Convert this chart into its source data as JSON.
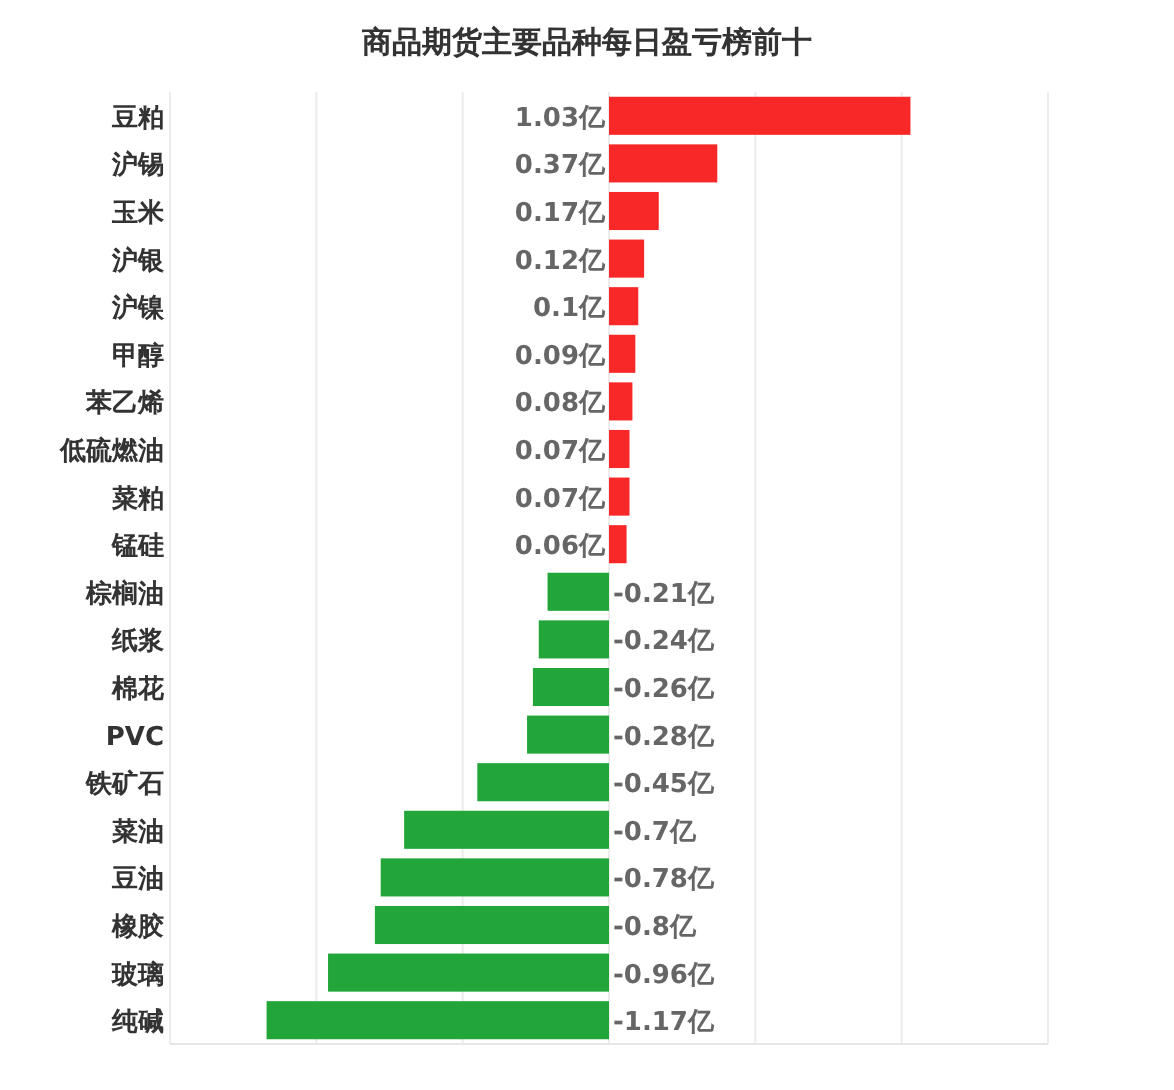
{
  "chart_data": {
    "type": "bar",
    "orientation": "horizontal",
    "title": "商品期货主要品种每日盈亏榜前十",
    "categories": [
      "豆粕",
      "沪锡",
      "玉米",
      "沪银",
      "沪镍",
      "甲醇",
      "苯乙烯",
      "低硫燃油",
      "菜粕",
      "锰硅",
      "棕榈油",
      "纸浆",
      "棉花",
      "PVC",
      "铁矿石",
      "菜油",
      "豆油",
      "橡胶",
      "玻璃",
      "纯碱"
    ],
    "values": [
      1.03,
      0.37,
      0.17,
      0.12,
      0.1,
      0.09,
      0.08,
      0.07,
      0.07,
      0.06,
      -0.21,
      -0.24,
      -0.26,
      -0.28,
      -0.45,
      -0.7,
      -0.78,
      -0.8,
      -0.96,
      -1.17
    ],
    "value_labels": [
      "1.03亿",
      "0.37亿",
      "0.17亿",
      "0.12亿",
      "0.1亿",
      "0.09亿",
      "0.08亿",
      "0.07亿",
      "0.07亿",
      "0.06亿",
      "-0.21亿",
      "-0.24亿",
      "-0.26亿",
      "-0.28亿",
      "-0.45亿",
      "-0.7亿",
      "-0.78亿",
      "-0.8亿",
      "-0.96亿",
      "-1.17亿"
    ],
    "colors": [
      "#f82828",
      "#f82828",
      "#f82828",
      "#f82828",
      "#f82828",
      "#f82828",
      "#f82828",
      "#f82828",
      "#f82828",
      "#f82828",
      "#22a63a",
      "#22a63a",
      "#22a63a",
      "#22a63a",
      "#22a63a",
      "#22a63a",
      "#22a63a",
      "#22a63a",
      "#22a63a",
      "#22a63a"
    ],
    "xlim": [
      -1.5,
      1.5
    ],
    "xticks": [
      {
        "value": -1.5,
        "label": null
      },
      {
        "value": -1,
        "label": null
      },
      {
        "value": -0.5,
        "label": null
      },
      {
        "value": 0,
        "label": null
      },
      {
        "value": 0.5,
        "label": null
      },
      {
        "value": 1,
        "label": null
      },
      {
        "value": 1.5,
        "label": null
      }
    ],
    "grid": "x",
    "tick_labels": "y"
  }
}
